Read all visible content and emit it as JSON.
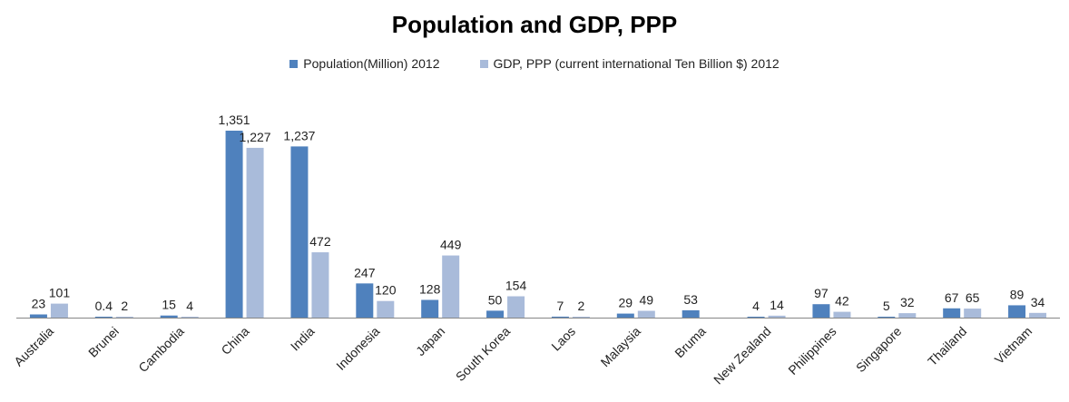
{
  "chart_data": {
    "type": "bar",
    "title": "Population and GDP, PPP",
    "legend_position": "top",
    "grid": false,
    "ylim": [
      0,
      1400
    ],
    "categories": [
      "Australia",
      "Brunei",
      "Cambodia",
      "China",
      "India",
      "Indonesia",
      "Japan",
      "South Korea",
      "Laos",
      "Malaysia",
      "Bruma",
      "New Zealand",
      "Philippines",
      "Singapore",
      "Thailand",
      "Vietnam"
    ],
    "series": [
      {
        "name": "Population(Million) 2012",
        "color": "#4F81BD",
        "values": [
          23,
          0.4,
          15,
          1351,
          1237,
          247,
          128,
          50,
          7,
          29,
          53,
          4,
          97,
          5,
          67,
          89
        ],
        "labels": [
          "23",
          "0.4",
          "15",
          "1,351",
          "1,237",
          "247",
          "128",
          "50",
          "7",
          "29",
          "53",
          "4",
          "97",
          "5",
          "67",
          "89"
        ]
      },
      {
        "name": "GDP, PPP (current international Ten Billion $) 2012",
        "color": "#A9BBDA",
        "values": [
          101,
          2,
          4,
          1227,
          472,
          120,
          449,
          154,
          2,
          49,
          null,
          14,
          42,
          32,
          65,
          34
        ],
        "labels": [
          "101",
          "2",
          "4",
          "1,227",
          "472",
          "120",
          "449",
          "154",
          "2",
          "49",
          "",
          "14",
          "42",
          "32",
          "65",
          "34"
        ]
      }
    ]
  }
}
